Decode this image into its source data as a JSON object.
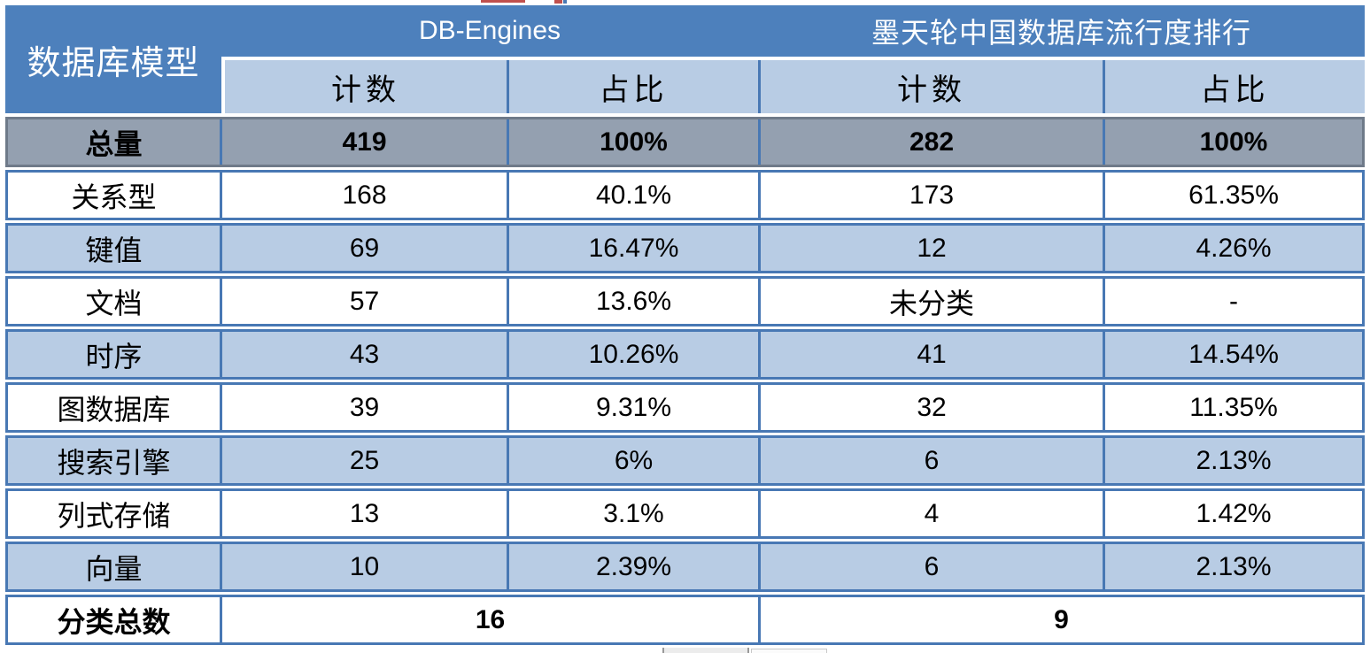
{
  "chart_data": {
    "type": "table",
    "corner_header": "数据库模型",
    "column_groups": [
      {
        "label": "DB-Engines",
        "columns": [
          "计数",
          "占比"
        ]
      },
      {
        "label": "墨天轮中国数据库流行度排行",
        "columns": [
          "计数",
          "占比"
        ]
      }
    ],
    "rows": [
      {
        "label": "总量",
        "cells": [
          "419",
          "100%",
          "282",
          "100%"
        ],
        "style": "total"
      },
      {
        "label": "关系型",
        "cells": [
          "168",
          "40.1%",
          "173",
          "61.35%"
        ]
      },
      {
        "label": "键值",
        "cells": [
          "69",
          "16.47%",
          "12",
          "4.26%"
        ]
      },
      {
        "label": "文档",
        "cells": [
          "57",
          "13.6%",
          "未分类",
          "-"
        ]
      },
      {
        "label": "时序",
        "cells": [
          "43",
          "10.26%",
          "41",
          "14.54%"
        ]
      },
      {
        "label": "图数据库",
        "cells": [
          "39",
          "9.31%",
          "32",
          "11.35%"
        ]
      },
      {
        "label": "搜索引擎",
        "cells": [
          "25",
          "6%",
          "6",
          "2.13%"
        ]
      },
      {
        "label": "列式存储",
        "cells": [
          "13",
          "3.1%",
          "4",
          "1.42%"
        ]
      },
      {
        "label": "向量",
        "cells": [
          "10",
          "2.39%",
          "6",
          "2.13%"
        ]
      }
    ],
    "footer": {
      "label": "分类总数",
      "values": [
        "16",
        "9"
      ]
    },
    "colors": {
      "header_blue": "#4d80bc",
      "subheader_light_blue": "#b8cce4",
      "total_row_gray": "#94a0b0",
      "border_blue": "#4878b4",
      "total_border_gray": "#6f7a89",
      "header_text": "#ffffff",
      "body_text": "#000000"
    }
  }
}
